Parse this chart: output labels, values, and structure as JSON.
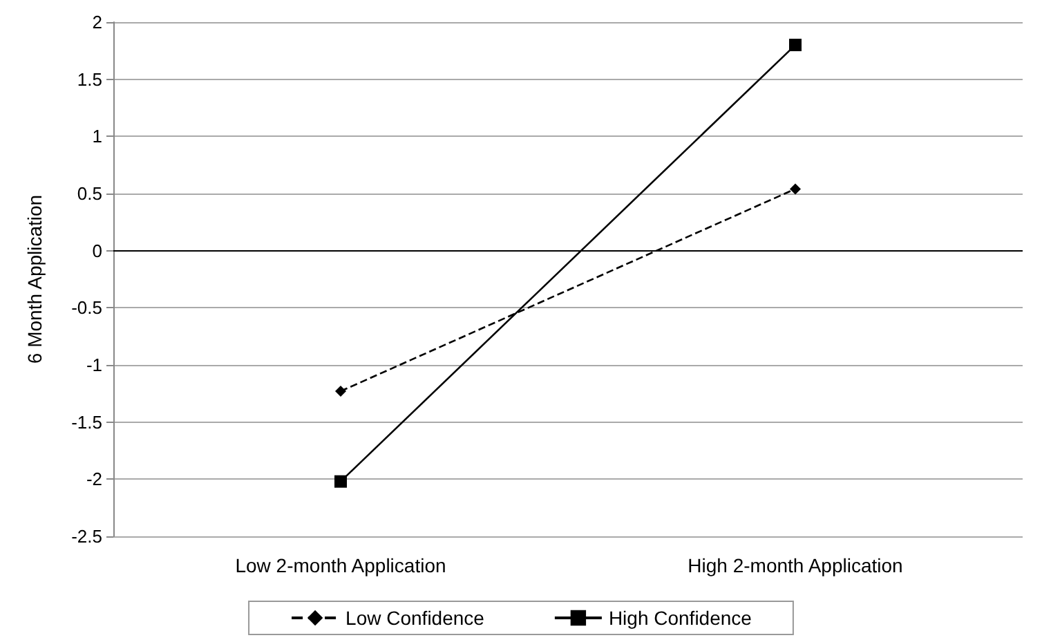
{
  "chart_data": {
    "type": "line",
    "ylabel": "6 Month Application",
    "categories": [
      "Low 2-month Application",
      "High 2-month Application"
    ],
    "series": [
      {
        "name": "Low Confidence",
        "color": "#000000",
        "values": [
          -1.23,
          0.54
        ],
        "marker": "diamond",
        "line_style": "dashed"
      },
      {
        "name": "High Confidence",
        "color": "#000000",
        "values": [
          -2.02,
          1.8
        ],
        "marker": "square",
        "line_style": "solid"
      }
    ],
    "ylim": [
      -2.5,
      2
    ],
    "yticks": [
      -2.5,
      -2,
      -1.5,
      -1,
      -0.5,
      0,
      0.5,
      1,
      1.5,
      2
    ],
    "grid": "y",
    "legend": "bottom",
    "ref_lines": [
      {
        "axis": "y",
        "value": 0,
        "color": "#000000"
      }
    ]
  }
}
